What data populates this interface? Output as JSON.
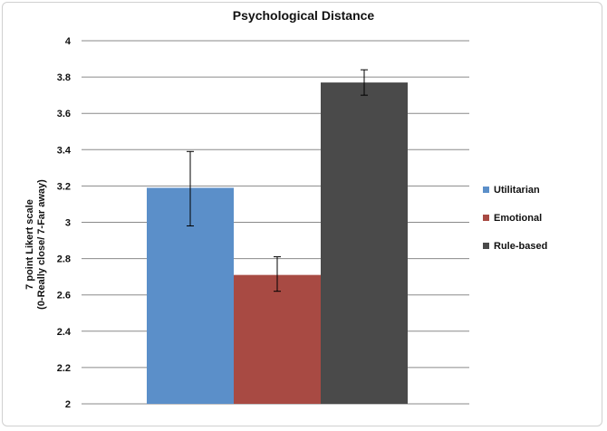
{
  "chart_data": {
    "type": "bar",
    "title": "Psychological Distance",
    "ylabel_line1": "7 point Likert scale",
    "ylabel_line2": "(0-Really close/ 7-Far away)",
    "xlabel": "",
    "ylim": [
      2,
      4
    ],
    "yticks": [
      "4",
      "3.8",
      "3.6",
      "3.4",
      "3.2",
      "3",
      "2.8",
      "2.6",
      "2.4",
      "2.2",
      "2"
    ],
    "grid": true,
    "legend_position": "right",
    "series": [
      {
        "name": "Utilitarian",
        "value": 3.19,
        "error_low": 2.98,
        "error_high": 3.39,
        "color": "#5b8fc9"
      },
      {
        "name": "Emotional",
        "value": 2.71,
        "error_low": 2.62,
        "error_high": 2.81,
        "color": "#a84a43"
      },
      {
        "name": "Rule-based",
        "value": 3.77,
        "error_low": 3.7,
        "error_high": 3.84,
        "color": "#4a4a4a"
      }
    ]
  }
}
